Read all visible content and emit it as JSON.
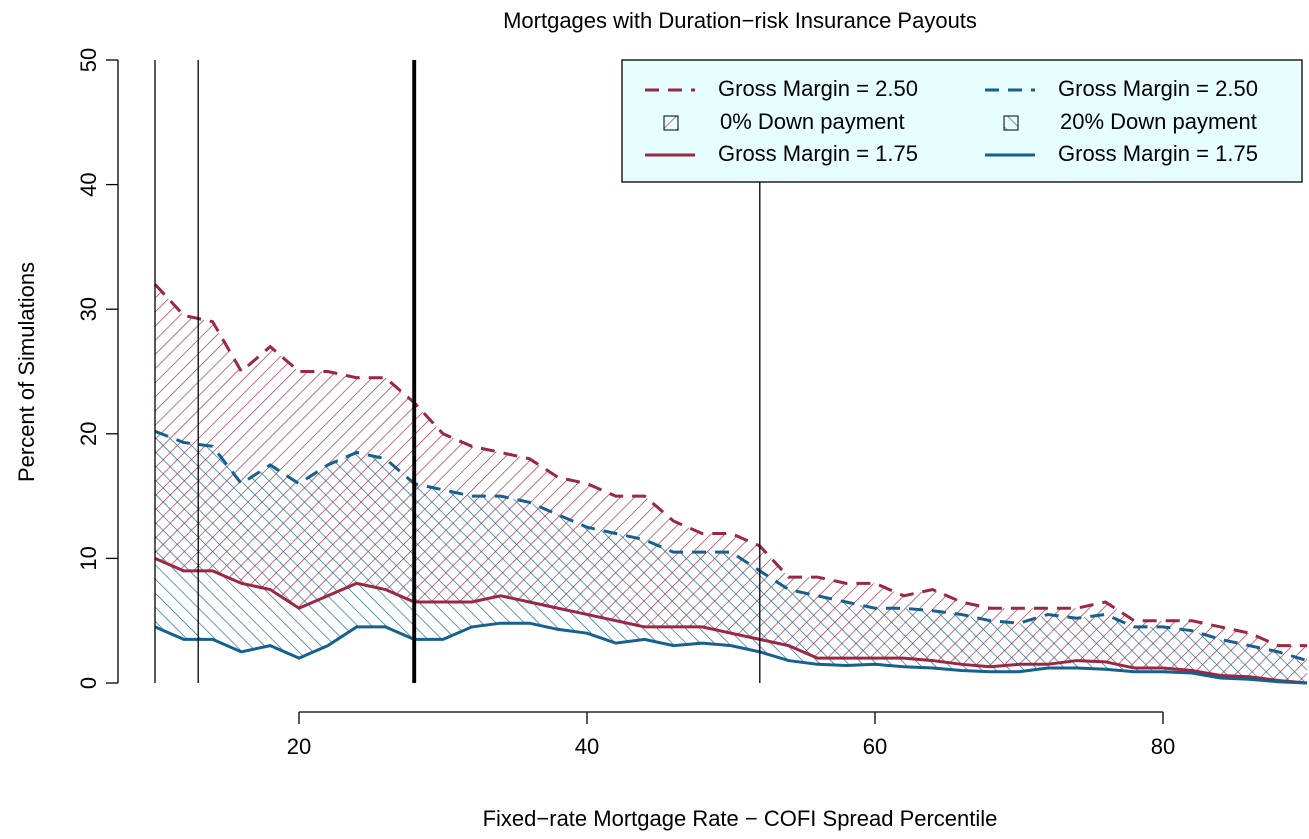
{
  "chart_data": {
    "type": "band",
    "title": "Mortgages with Duration−risk Insurance Payouts",
    "xlabel": "Fixed−rate Mortgage Rate − COFI Spread Percentile",
    "ylabel": "Percent of Simulations",
    "xlim": [
      10,
      90
    ],
    "ylim": [
      0,
      50
    ],
    "xticks": [
      20,
      40,
      60,
      80
    ],
    "yticks": [
      0,
      10,
      20,
      30,
      40,
      50
    ],
    "x": [
      10,
      12,
      14,
      16,
      18,
      20,
      22,
      24,
      26,
      28,
      30,
      32,
      34,
      36,
      38,
      40,
      42,
      44,
      46,
      48,
      50,
      52,
      54,
      56,
      58,
      60,
      62,
      64,
      66,
      68,
      70,
      72,
      74,
      76,
      78,
      80,
      82,
      84,
      86,
      88,
      90
    ],
    "vlines": [
      {
        "x": 10,
        "lwd": 1
      },
      {
        "x": 13,
        "lwd": 1
      },
      {
        "x": 28,
        "lwd": 3
      },
      {
        "x": 52,
        "lwd": 1
      }
    ],
    "legend_bg": "#e6fefe",
    "groups": [
      {
        "name": "0% Down payment",
        "color": "#9b2743",
        "hatch": "/",
        "series": [
          {
            "name": "Gross Margin = 2.50",
            "dashed": true,
            "values": [
              32,
              29.5,
              29,
              25,
              27,
              25,
              25,
              24.5,
              24.5,
              22.5,
              20,
              19,
              18.5,
              18,
              16.5,
              16,
              15,
              15,
              13,
              12,
              12,
              11,
              8.5,
              8.5,
              8,
              8,
              7,
              7.5,
              6.5,
              6,
              6,
              6,
              6,
              6.5,
              5,
              5,
              5,
              4.5,
              4,
              3,
              3
            ]
          },
          {
            "name": "Gross Margin = 1.75",
            "dashed": false,
            "values": [
              10,
              9,
              9,
              8,
              7.5,
              6,
              7,
              8,
              7.5,
              6.5,
              6.5,
              6.5,
              7,
              6.5,
              6,
              5.5,
              5,
              4.5,
              4.5,
              4.5,
              4,
              3.5,
              3,
              2,
              2,
              2,
              2,
              1.8,
              1.5,
              1.3,
              1.5,
              1.5,
              1.8,
              1.7,
              1.2,
              1.2,
              1,
              0.6,
              0.5,
              0.2,
              0
            ]
          }
        ]
      },
      {
        "name": "20% Down payment",
        "color": "#15608f",
        "hatch": "\\",
        "series": [
          {
            "name": "Gross Margin = 2.50",
            "dashed": true,
            "values": [
              20.2,
              19.3,
              19,
              16,
              17.5,
              16,
              17.5,
              18.5,
              18,
              16,
              15.5,
              15,
              15,
              14.5,
              13.5,
              12.5,
              12,
              11.5,
              10.5,
              10.5,
              10.5,
              9,
              7.5,
              7,
              6.5,
              6,
              6,
              5.8,
              5.5,
              5,
              4.8,
              5.5,
              5.2,
              5.5,
              4.5,
              4.5,
              4.2,
              3.5,
              3,
              2.5,
              1.8
            ]
          },
          {
            "name": "Gross Margin = 1.75",
            "dashed": false,
            "values": [
              4.5,
              3.5,
              3.5,
              2.5,
              3,
              2,
              3,
              4.5,
              4.5,
              3.5,
              3.5,
              4.5,
              4.8,
              4.8,
              4.3,
              4,
              3.2,
              3.5,
              3,
              3.2,
              3,
              2.5,
              1.8,
              1.5,
              1.4,
              1.5,
              1.3,
              1.2,
              1,
              0.9,
              0.9,
              1.2,
              1.2,
              1.1,
              0.9,
              0.9,
              0.8,
              0.4,
              0.3,
              0.1,
              0
            ]
          }
        ]
      }
    ]
  }
}
